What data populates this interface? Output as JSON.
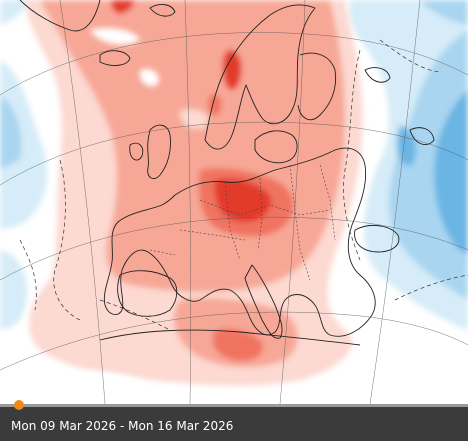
{
  "map": {
    "layer": "temperature anomaly",
    "colors": {
      "sea_background": "#ffffff",
      "warm_light": "#fcd9d1",
      "warm_medium": "#f7a796",
      "warm_strong": "#f07361",
      "warm_intense": "#e33a2b",
      "cool_light": "#d6ecf8",
      "cool_medium": "#a9d5f0",
      "cool_strong": "#6bb5e3",
      "coastline": "#222222",
      "graticule": "#555555"
    }
  },
  "timeline": {
    "date_range": "Mon 09 Mar 2026 - Mon 16 Mar 2026",
    "position": 0.04
  }
}
